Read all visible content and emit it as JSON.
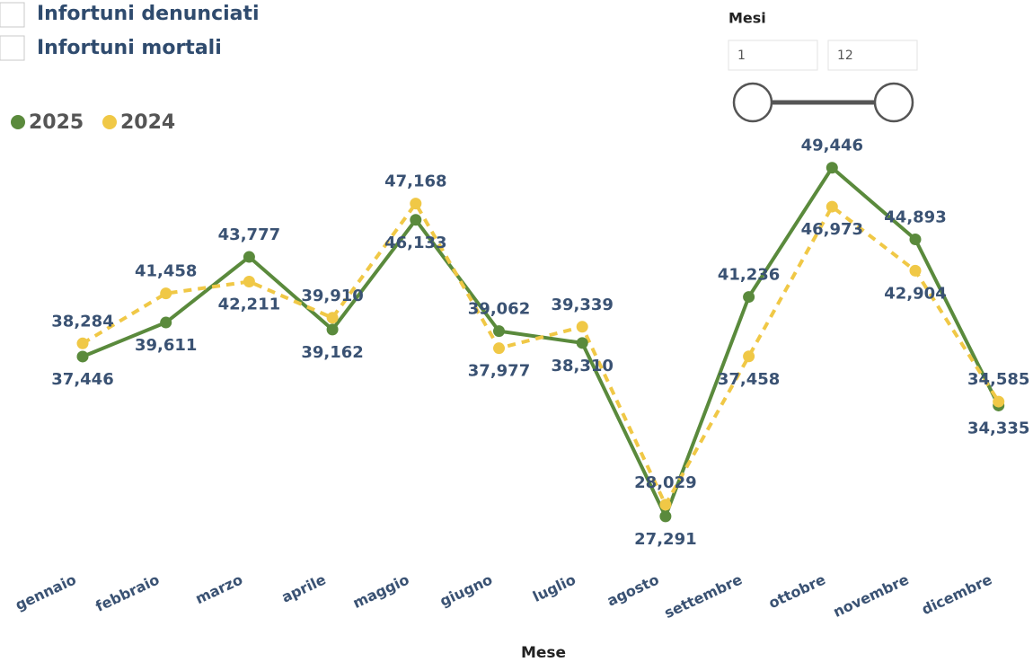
{
  "filters": {
    "options": [
      "Infortuni denunciati",
      "Infortuni mortali"
    ]
  },
  "slider": {
    "title": "Mesi",
    "from": "1",
    "to": "12"
  },
  "chart_data": {
    "type": "line",
    "x_label": "Mese",
    "categories": [
      "gennaio",
      "febbraio",
      "marzo",
      "aprile",
      "maggio",
      "giugno",
      "luglio",
      "agosto",
      "settembre",
      "ottobre",
      "novembre",
      "dicembre"
    ],
    "series": [
      {
        "name": "2025",
        "color": "#5a8a3c",
        "dashed": false,
        "values": [
          37446,
          39611,
          43777,
          39162,
          46133,
          39062,
          38310,
          27291,
          41236,
          49446,
          44893,
          34335
        ],
        "value_labels": [
          "37,446",
          "39,611",
          "43,777",
          "39,162",
          "46,133",
          "39,062",
          "38,310",
          "27,291",
          "41,236",
          "49,446",
          "44,893",
          "34,335"
        ]
      },
      {
        "name": "2024",
        "color": "#f0c846",
        "dashed": true,
        "values": [
          38284,
          41458,
          42211,
          39910,
          47168,
          37977,
          39339,
          28029,
          37458,
          46973,
          42904,
          34585
        ],
        "value_labels": [
          "38,284",
          "41,458",
          "42,211",
          "39,910",
          "47,168",
          "37,977",
          "39,339",
          "28,029",
          "37,458",
          "46,973",
          "42,904",
          "34,585"
        ]
      }
    ],
    "ylim": [
      25000,
      52000
    ],
    "legend": "top-left"
  }
}
